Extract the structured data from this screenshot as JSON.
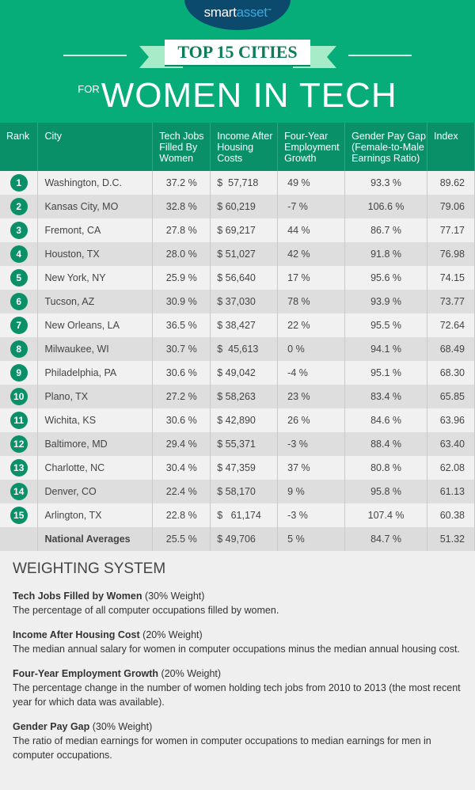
{
  "brand": {
    "logo_left": "smart",
    "logo_right": "asset",
    "tm": "™"
  },
  "title": {
    "ribbon": "TOP 15 CITIES",
    "prefix": "FOR",
    "main": "WOMEN IN TECH"
  },
  "colors": {
    "green": "#07ad78",
    "header_green": "#0a9069",
    "logo_navy": "#0b4a6d"
  },
  "table": {
    "headers": [
      "Rank",
      "City",
      "Tech Jobs Filled By Women",
      "Income After Housing Costs",
      "Four-Year Employment Growth",
      "Gender Pay Gap (Female-to-Male Earnings Ratio)",
      "Index"
    ],
    "rows": [
      {
        "rank": "1",
        "city": "Washington, D.C.",
        "tech": "37.2 %",
        "income": "$  57,718",
        "growth": "49 %",
        "gap": "93.3 %",
        "index": "89.62"
      },
      {
        "rank": "2",
        "city": "Kansas City, MO",
        "tech": "32.8 %",
        "income": "$ 60,219",
        "growth": "-7 %",
        "gap": "106.6 %",
        "index": "79.06"
      },
      {
        "rank": "3",
        "city": "Fremont, CA",
        "tech": "27.8 %",
        "income": "$ 69,217",
        "growth": "44 %",
        "gap": "86.7 %",
        "index": "77.17"
      },
      {
        "rank": "4",
        "city": "Houston, TX",
        "tech": "28.0 %",
        "income": "$ 51,027",
        "growth": "42 %",
        "gap": "91.8 %",
        "index": "76.98"
      },
      {
        "rank": "5",
        "city": "New York, NY",
        "tech": "25.9 %",
        "income": "$ 56,640",
        "growth": "17 %",
        "gap": "95.6 %",
        "index": "74.15"
      },
      {
        "rank": "6",
        "city": "Tucson, AZ",
        "tech": "30.9 %",
        "income": "$ 37,030",
        "growth": "78 %",
        "gap": "93.9 %",
        "index": "73.77"
      },
      {
        "rank": "7",
        "city": "New Orleans, LA",
        "tech": "36.5 %",
        "income": "$ 38,427",
        "growth": "22 %",
        "gap": "95.5 %",
        "index": "72.64"
      },
      {
        "rank": "8",
        "city": "Milwaukee, WI",
        "tech": "30.7 %",
        "income": "$  45,613",
        "growth": "0 %",
        "gap": "94.1 %",
        "index": "68.49"
      },
      {
        "rank": "9",
        "city": "Philadelphia, PA",
        "tech": "30.6 %",
        "income": "$ 49,042",
        "growth": "-4 %",
        "gap": "95.1 %",
        "index": "68.30"
      },
      {
        "rank": "10",
        "city": "Plano, TX",
        "tech": "27.2 %",
        "income": "$ 58,263",
        "growth": "23 %",
        "gap": "83.4 %",
        "index": "65.85"
      },
      {
        "rank": "11",
        "city": "Wichita, KS",
        "tech": "30.6 %",
        "income": "$ 42,890",
        "growth": "26 %",
        "gap": "84.6 %",
        "index": "63.96"
      },
      {
        "rank": "12",
        "city": "Baltimore, MD",
        "tech": "29.4 %",
        "income": "$ 55,371",
        "growth": "-3 %",
        "gap": "88.4 %",
        "index": "63.40"
      },
      {
        "rank": "13",
        "city": "Charlotte, NC",
        "tech": "30.4 %",
        "income": "$ 47,359",
        "growth": "37 %",
        "gap": "80.8 %",
        "index": "62.08"
      },
      {
        "rank": "14",
        "city": "Denver, CO",
        "tech": "22.4 %",
        "income": "$ 58,170",
        "growth": "9 %",
        "gap": "95.8 %",
        "index": "61.13"
      },
      {
        "rank": "15",
        "city": "Arlington, TX",
        "tech": "22.8 %",
        "income": "$   61,174",
        "growth": "-3 %",
        "gap": "107.4 %",
        "index": "60.38"
      }
    ],
    "average": {
      "city": "National Averages",
      "tech": "25.5 %",
      "income": "$ 49,706",
      "growth": "5 %",
      "gap": "84.7 %",
      "index": "51.32"
    }
  },
  "weighting": {
    "title": "WEIGHTING SYSTEM",
    "items": [
      {
        "name": "Tech Jobs Filled by Women",
        "weight": "(30% Weight)",
        "desc": "The percentage of all computer occupations filled by women."
      },
      {
        "name": "Income After Housing Cost",
        "weight": "(20% Weight)",
        "desc": "The median annual salary for women in computer occupations minus the median annual housing cost."
      },
      {
        "name": "Four-Year Employment Growth",
        "weight": "(20% Weight)",
        "desc": "The percentage change in the number of women holding tech jobs from 2010 to 2013 (the most recent year for which data was available)."
      },
      {
        "name": "Gender Pay Gap",
        "weight": "(30% Weight)",
        "desc": "The ratio of median earnings for women in computer occupations to median earnings for men in computer occupations."
      }
    ]
  }
}
